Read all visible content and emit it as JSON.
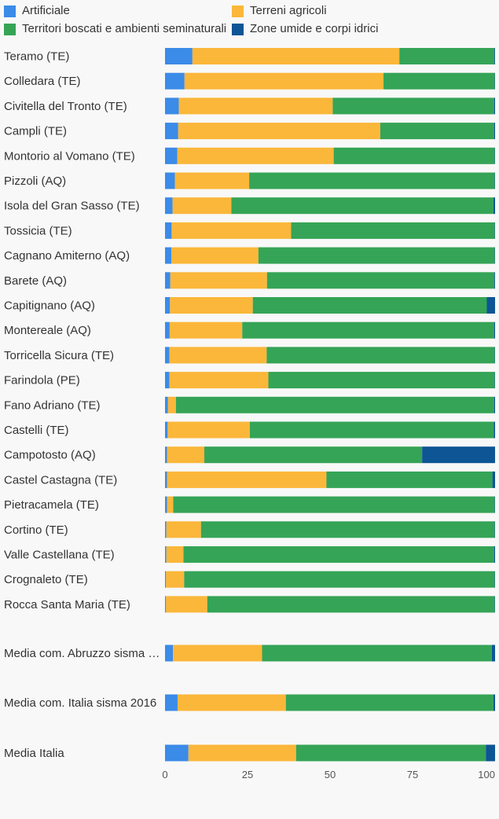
{
  "chart_data": {
    "type": "bar",
    "orientation": "horizontal",
    "stacked": true,
    "title": "",
    "xlabel": "",
    "ylabel": "",
    "xlim": [
      0,
      100
    ],
    "xticks": [
      0,
      25,
      50,
      75,
      100
    ],
    "grid": false,
    "legend_position": "top",
    "categories": [
      "Teramo (TE)",
      "Colledara (TE)",
      "Civitella del Tronto (TE)",
      "Campli (TE)",
      "Montorio al Vomano (TE)",
      "Pizzoli (AQ)",
      "Isola del Gran Sasso (TE)",
      "Tossicia (TE)",
      "Cagnano Amiterno (AQ)",
      "Barete (AQ)",
      "Capitignano (AQ)",
      "Montereale (AQ)",
      "Torricella Sicura (TE)",
      "Farindola (PE)",
      "Fano Adriano (TE)",
      "Castelli (TE)",
      "Campotosto (AQ)",
      "Castel Castagna (TE)",
      "Pietracamela (TE)",
      "Cortino (TE)",
      "Valle Castellana (TE)",
      "Crognaleto (TE)",
      "Rocca Santa Maria (TE)",
      "Media com. Abruzzo sisma …",
      "Media com. Italia sisma 2016",
      "Media Italia"
    ],
    "series": [
      {
        "name": "Artificiale",
        "color": "#3b8be8",
        "values": [
          8.3,
          5.9,
          4.2,
          4.0,
          3.7,
          3.0,
          2.3,
          2.0,
          1.9,
          1.6,
          1.5,
          1.4,
          1.3,
          1.3,
          0.9,
          0.8,
          0.6,
          0.6,
          0.6,
          0.4,
          0.4,
          0.3,
          0.3,
          2.4,
          3.8,
          7.1
        ]
      },
      {
        "name": "Terreni agricoli",
        "color": "#fbb73a",
        "values": [
          62.7,
          60.3,
          46.6,
          61.2,
          47.4,
          22.5,
          17.8,
          36.2,
          26.4,
          29.3,
          25.1,
          22.0,
          29.5,
          30.0,
          2.4,
          24.9,
          11.3,
          48.3,
          1.9,
          10.5,
          5.2,
          5.5,
          12.5,
          27.0,
          32.8,
          32.6
        ]
      },
      {
        "name": "Territori boscati e ambienti seminaturali",
        "color": "#35a456",
        "values": [
          28.8,
          33.7,
          48.9,
          34.5,
          48.8,
          74.4,
          79.4,
          61.7,
          71.6,
          68.9,
          70.9,
          76.3,
          69.1,
          68.6,
          96.4,
          73.9,
          66.0,
          50.3,
          97.4,
          89.0,
          94.1,
          94.1,
          87.1,
          69.6,
          62.9,
          57.5
        ]
      },
      {
        "name": "Zone umide e corpi idrici",
        "color": "#0d5595",
        "values": [
          0.2,
          0.1,
          0.3,
          0.3,
          0.1,
          0.1,
          0.5,
          0.1,
          0.1,
          0.2,
          2.5,
          0.3,
          0.1,
          0.1,
          0.3,
          0.4,
          22.1,
          0.8,
          0.1,
          0.1,
          0.3,
          0.1,
          0.1,
          1.0,
          0.5,
          2.8
        ]
      }
    ],
    "group_breaks_after": [
      22,
      23,
      24
    ]
  }
}
